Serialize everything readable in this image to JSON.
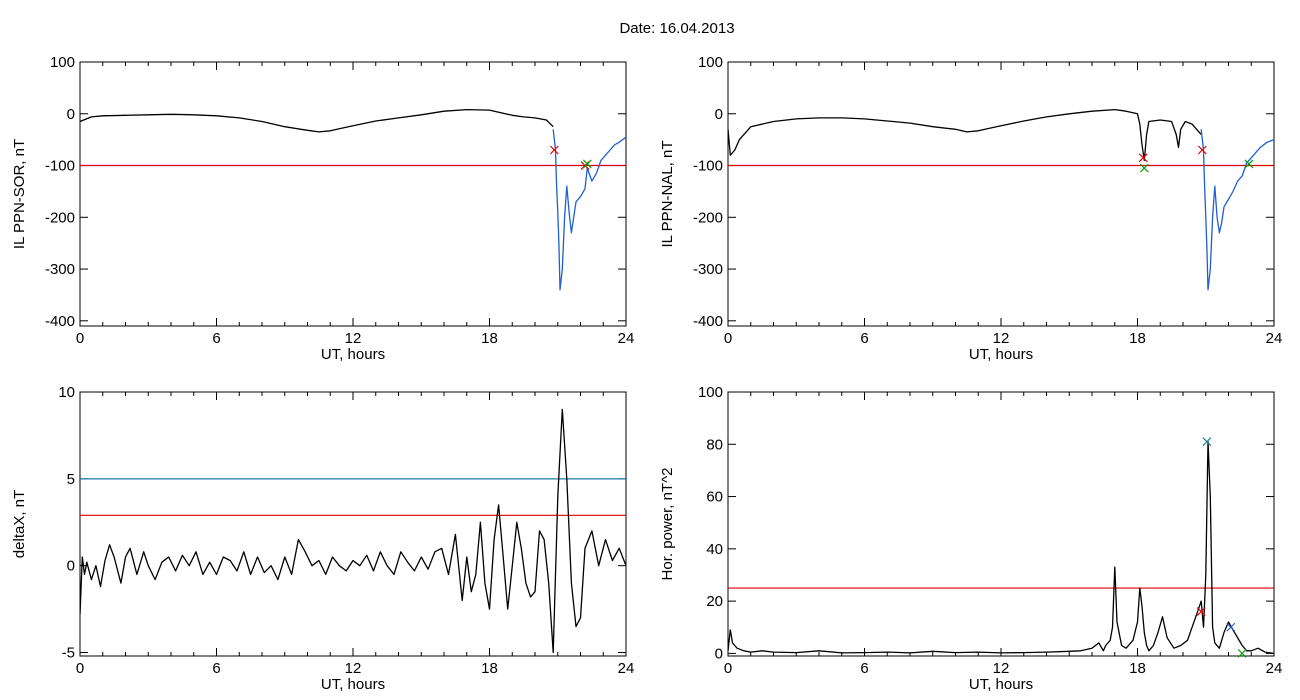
{
  "title": "Date:  16.04.2013",
  "chart_data": [
    {
      "type": "line",
      "xlabel": "UT, hours",
      "ylabel": "IL PPN-SOR, nT",
      "xlim": [
        0,
        24
      ],
      "ylim": [
        -410,
        100
      ],
      "xticks": [
        0,
        6,
        12,
        18,
        24
      ],
      "yticks": [
        100,
        0,
        -100,
        -200,
        -300,
        -400
      ],
      "hlines": [
        {
          "y": -100,
          "color": "#e00000"
        }
      ],
      "series": [
        {
          "color": "#000000",
          "x": [
            0,
            0.5,
            1,
            2,
            3,
            4,
            5,
            6,
            7,
            8,
            9,
            10,
            10.5,
            11,
            12,
            13,
            14,
            15,
            16,
            17,
            18,
            18.5,
            19,
            19.5,
            20,
            20.5,
            20.8
          ],
          "y": [
            -15,
            -6,
            -4,
            -3,
            -2,
            -1,
            -2,
            -4,
            -8,
            -15,
            -25,
            -32,
            -35,
            -33,
            -23,
            -14,
            -8,
            -2,
            5,
            8,
            7,
            2,
            -3,
            -6,
            -8,
            -12,
            -25
          ]
        },
        {
          "color": "#1f5fd0",
          "x": [
            20.8,
            20.9,
            20.95,
            21.0,
            21.05,
            21.1,
            21.2,
            21.3,
            21.4,
            21.5,
            21.6,
            21.7,
            21.8,
            22.0,
            22.2,
            22.3,
            22.5,
            22.7,
            22.9,
            23.1,
            23.3,
            23.5,
            23.7,
            24.0
          ],
          "y": [
            -30,
            -70,
            -140,
            -190,
            -250,
            -340,
            -300,
            -200,
            -140,
            -190,
            -230,
            -200,
            -170,
            -160,
            -145,
            -105,
            -130,
            -115,
            -90,
            -80,
            -70,
            -60,
            -55,
            -45
          ]
        }
      ],
      "markers": [
        {
          "x": 20.85,
          "y": -70,
          "color": "#e00000"
        },
        {
          "x": 22.2,
          "y": -100,
          "color": "#e00000"
        },
        {
          "x": 22.3,
          "y": -97,
          "color": "#00a000"
        }
      ]
    },
    {
      "type": "line",
      "xlabel": "UT, hours",
      "ylabel": "IL PPN-NAL, nT",
      "xlim": [
        0,
        24
      ],
      "ylim": [
        -410,
        100
      ],
      "xticks": [
        0,
        6,
        12,
        18,
        24
      ],
      "yticks": [
        100,
        0,
        -100,
        -200,
        -300,
        -400
      ],
      "hlines": [
        {
          "y": -100,
          "color": "#e00000"
        }
      ],
      "series": [
        {
          "color": "#000000",
          "x": [
            0,
            0.1,
            0.3,
            0.5,
            0.8,
            1,
            2,
            3,
            4,
            5,
            6,
            7,
            8,
            9,
            10,
            10.5,
            11,
            12,
            13,
            14,
            15,
            16,
            17,
            17.5,
            18.0,
            18.1,
            18.2,
            18.3,
            18.4,
            18.5,
            19,
            19.5,
            19.7,
            19.8,
            19.9,
            20.1,
            20.4,
            20.7,
            20.8
          ],
          "y": [
            -30,
            -80,
            -70,
            -50,
            -35,
            -25,
            -15,
            -10,
            -8,
            -8,
            -10,
            -14,
            -18,
            -25,
            -30,
            -35,
            -33,
            -23,
            -14,
            -6,
            0,
            5,
            8,
            5,
            0,
            -20,
            -60,
            -90,
            -40,
            -15,
            -12,
            -15,
            -40,
            -65,
            -30,
            -15,
            -20,
            -35,
            -40
          ]
        },
        {
          "color": "#1f5fd0",
          "x": [
            20.8,
            20.9,
            20.95,
            21.0,
            21.05,
            21.1,
            21.2,
            21.3,
            21.4,
            21.5,
            21.6,
            21.7,
            21.8,
            22.0,
            22.2,
            22.4,
            22.6,
            22.8,
            23.0,
            23.2,
            23.4,
            23.7,
            24.0
          ],
          "y": [
            -30,
            -70,
            -140,
            -200,
            -260,
            -340,
            -300,
            -200,
            -140,
            -200,
            -230,
            -210,
            -180,
            -165,
            -150,
            -130,
            -120,
            -95,
            -85,
            -75,
            -65,
            -55,
            -50
          ]
        }
      ],
      "markers": [
        {
          "x": 18.25,
          "y": -85,
          "color": "#e00000"
        },
        {
          "x": 18.3,
          "y": -105,
          "color": "#00a000"
        },
        {
          "x": 20.85,
          "y": -70,
          "color": "#e00000"
        },
        {
          "x": 22.9,
          "y": -97,
          "color": "#00a000"
        }
      ]
    },
    {
      "type": "line",
      "xlabel": "UT, hours",
      "ylabel": "deltaX, nT",
      "xlim": [
        0,
        24
      ],
      "ylim": [
        -5.2,
        10
      ],
      "xticks": [
        0,
        6,
        12,
        18,
        24
      ],
      "yticks": [
        10,
        5,
        0,
        -5
      ],
      "hlines": [
        {
          "y": 5,
          "color": "#1f7fa0"
        },
        {
          "y": 2.9,
          "color": "#e00000"
        }
      ],
      "series": [
        {
          "color": "#000000",
          "x": [
            0,
            0.1,
            0.2,
            0.3,
            0.5,
            0.7,
            0.9,
            1.1,
            1.3,
            1.5,
            1.8,
            2.0,
            2.2,
            2.5,
            2.8,
            3.0,
            3.3,
            3.6,
            3.9,
            4.2,
            4.5,
            4.8,
            5.1,
            5.4,
            5.7,
            6.0,
            6.3,
            6.6,
            6.9,
            7.2,
            7.5,
            7.8,
            8.1,
            8.4,
            8.7,
            9.0,
            9.3,
            9.6,
            9.9,
            10.2,
            10.5,
            10.8,
            11.1,
            11.4,
            11.7,
            12.0,
            12.3,
            12.6,
            12.9,
            13.2,
            13.5,
            13.8,
            14.1,
            14.4,
            14.7,
            15.0,
            15.3,
            15.6,
            15.9,
            16.2,
            16.5,
            16.8,
            17.0,
            17.2,
            17.4,
            17.6,
            17.8,
            18.0,
            18.2,
            18.4,
            18.6,
            18.8,
            19.0,
            19.2,
            19.4,
            19.6,
            19.8,
            20.0,
            20.2,
            20.4,
            20.6,
            20.8,
            21.0,
            21.2,
            21.4,
            21.6,
            21.8,
            22.0,
            22.2,
            22.5,
            22.8,
            23.1,
            23.4,
            23.7,
            24.0
          ],
          "y": [
            -2.8,
            0.5,
            -0.5,
            0.2,
            -0.8,
            0.0,
            -1.2,
            0.3,
            1.2,
            0.5,
            -1.0,
            0.5,
            1.0,
            -0.5,
            0.8,
            0.0,
            -0.8,
            0.2,
            0.5,
            -0.3,
            0.6,
            0.0,
            0.8,
            -0.5,
            0.2,
            -0.5,
            0.5,
            0.3,
            -0.3,
            0.8,
            -0.5,
            0.5,
            -0.4,
            0.0,
            -0.8,
            0.5,
            -0.5,
            1.5,
            0.8,
            0.0,
            0.3,
            -0.5,
            0.5,
            0.0,
            -0.3,
            0.3,
            0.0,
            0.6,
            -0.3,
            0.8,
            0.0,
            -0.5,
            0.8,
            0.2,
            -0.3,
            0.5,
            -0.2,
            0.8,
            1.0,
            -0.5,
            1.8,
            -2.0,
            0.5,
            -1.5,
            -0.5,
            2.5,
            -1.0,
            -2.5,
            1.5,
            3.5,
            0.5,
            -2.5,
            0.0,
            2.5,
            1.0,
            -1.0,
            -1.8,
            -1.5,
            2.0,
            1.5,
            -1.0,
            -5.0,
            4.0,
            9.0,
            5.0,
            -1.0,
            -3.5,
            -3.0,
            1.0,
            2.0,
            0.0,
            1.5,
            0.3,
            1.0,
            0.0
          ]
        }
      ],
      "markers": []
    },
    {
      "type": "line",
      "xlabel": "UT, hours",
      "ylabel": "Hor. power, nT^2",
      "xlim": [
        0,
        24
      ],
      "ylim": [
        -1,
        100
      ],
      "xticks": [
        0,
        6,
        12,
        18,
        24
      ],
      "yticks": [
        100,
        80,
        60,
        40,
        20,
        0
      ],
      "hlines": [
        {
          "y": 25,
          "color": "#e00000"
        }
      ],
      "series": [
        {
          "color": "#000000",
          "x": [
            0,
            0.1,
            0.2,
            0.4,
            0.7,
            1.0,
            1.5,
            2.0,
            3.0,
            4.0,
            5.0,
            6.0,
            7.0,
            8.0,
            9.0,
            10.0,
            11.0,
            12.0,
            13.0,
            14.0,
            15.0,
            15.5,
            16.0,
            16.3,
            16.5,
            16.6,
            16.8,
            16.9,
            17.0,
            17.1,
            17.3,
            17.5,
            17.8,
            18.0,
            18.1,
            18.2,
            18.3,
            18.4,
            18.5,
            18.7,
            18.9,
            19.1,
            19.3,
            19.6,
            19.9,
            20.2,
            20.4,
            20.6,
            20.8,
            20.9,
            21.0,
            21.1,
            21.2,
            21.3,
            21.4,
            21.6,
            21.8,
            22.0,
            22.2,
            22.4,
            22.6,
            22.8,
            23.0,
            23.3,
            23.6,
            24.0
          ],
          "y": [
            1,
            9,
            4,
            2,
            1,
            0.5,
            1,
            0.5,
            0.3,
            1,
            0.2,
            0.3,
            0.5,
            0.2,
            0.8,
            0.3,
            0.5,
            0.2,
            0.3,
            0.5,
            0.8,
            1,
            2,
            4,
            1,
            3,
            5,
            10,
            33,
            12,
            3,
            2,
            5,
            12,
            25,
            18,
            8,
            3,
            1,
            3,
            8,
            14,
            6,
            2,
            3,
            5,
            10,
            15,
            20,
            10,
            30,
            81,
            60,
            10,
            4,
            2,
            8,
            12,
            9,
            6,
            3,
            1,
            1,
            2,
            0.5,
            0
          ]
        }
      ],
      "markers": [
        {
          "x": 20.8,
          "y": 16,
          "color": "#e00000"
        },
        {
          "x": 21.05,
          "y": 81,
          "color": "#1f7fa0"
        },
        {
          "x": 22.1,
          "y": 10,
          "color": "#1f5fd0"
        },
        {
          "x": 22.6,
          "y": 0,
          "color": "#00a000"
        }
      ]
    }
  ]
}
